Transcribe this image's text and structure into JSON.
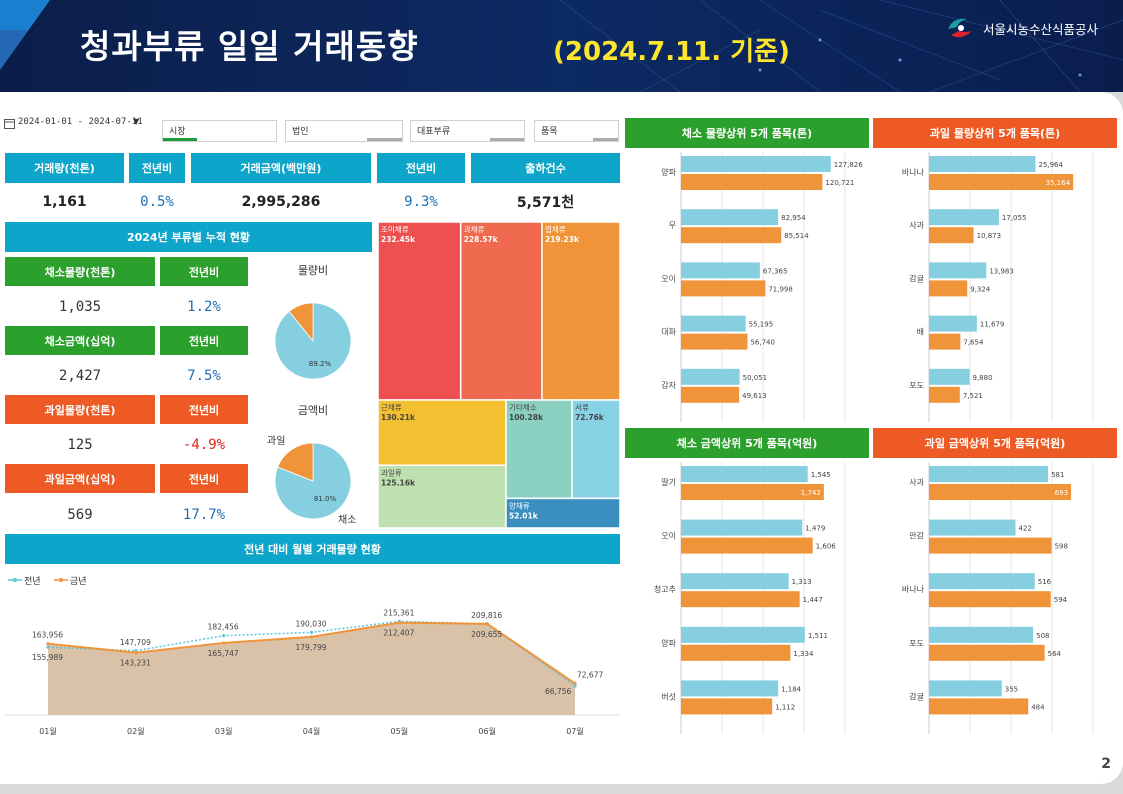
{
  "header": {
    "title": "청과부류 일일 거래동향",
    "date": "(2024.7.11. 기준)",
    "org": "서울시농수산식품공사"
  },
  "page_number": "2",
  "filters": {
    "date_range": "2024-01-01 - 2024-07-11",
    "items": [
      "시장",
      "법인",
      "대표부류",
      "품목"
    ]
  },
  "kpi": {
    "headers": [
      "거래량(천톤)",
      "전년비",
      "거래금액(백만원)",
      "전년비",
      "출하건수"
    ],
    "values": [
      "1,161",
      "0.5%",
      "2,995,286",
      "9.3%",
      "5,571천"
    ]
  },
  "cumulative": {
    "title": "2024년 부류별 누적 현황",
    "rows": [
      {
        "label": "채소물량(천톤)",
        "yoy_label": "전년비",
        "value": "1,035",
        "yoy": "1.2%"
      },
      {
        "label": "채소금액(십억)",
        "yoy_label": "전년비",
        "value": "2,427",
        "yoy": "7.5%"
      },
      {
        "label": "과일물량(천톤)",
        "yoy_label": "전년비",
        "value": "125",
        "yoy": "-4.9%"
      },
      {
        "label": "과일금액(십억)",
        "yoy_label": "전년비",
        "value": "569",
        "yoy": "17.7%"
      }
    ],
    "pie_volume_title": "물량비",
    "pie_amount_title": "금액비",
    "pie_label_fruit": "과일",
    "pie_label_veg": "채소"
  },
  "monthly": {
    "title": "전년 대비 월별 거래물량 현황",
    "legend_prev": "전년",
    "legend_curr": "금년"
  },
  "panels": {
    "veg_volume_title": "채소 물량상위 5개 품목(톤)",
    "fruit_volume_title": "과일 물량상위 5개 품목(톤)",
    "veg_amount_title": "채소 금액상위 5개 품목(억원)",
    "fruit_amount_title": "과일 금액상위 5개 품목(억원)"
  },
  "colors": {
    "teal": "#0da5c9",
    "green": "#2ca02c",
    "orange": "#ee5a24",
    "bar_prev": "#86cfe0",
    "bar_curr": "#f0943a"
  },
  "chart_data": [
    {
      "type": "pie",
      "title": "물량비",
      "labels": [
        "채소",
        "과일"
      ],
      "values": [
        89.2,
        10.8
      ],
      "data_labels": [
        "89.2%",
        ""
      ]
    },
    {
      "type": "pie",
      "title": "금액비",
      "labels": [
        "채소",
        "과일"
      ],
      "values": [
        81.0,
        19.0
      ],
      "data_labels": [
        "81.0%",
        ""
      ]
    },
    {
      "type": "heatmap",
      "subtype": "treemap",
      "items": [
        {
          "name": "조미채류",
          "value": 232.45,
          "label": "232.45k",
          "color": "#ee5050"
        },
        {
          "name": "과채류",
          "value": 228.57,
          "label": "228.57k",
          "color": "#ef6a4e"
        },
        {
          "name": "엽채류",
          "value": 219.23,
          "label": "219.23k",
          "color": "#f0943a"
        },
        {
          "name": "근채류",
          "value": 130.21,
          "label": "130.21k",
          "color": "#f2c030"
        },
        {
          "name": "과일류",
          "value": 125.16,
          "label": "125.16k",
          "color": "#bfe0b0"
        },
        {
          "name": "기타채소",
          "value": 100.28,
          "label": "100.28k",
          "color": "#8cd0c2"
        },
        {
          "name": "서류",
          "value": 72.76,
          "label": "72.76k",
          "color": "#88d2e6"
        },
        {
          "name": "양채류",
          "value": 52.01,
          "label": "52.01k",
          "color": "#3b8fc0"
        }
      ]
    },
    {
      "type": "area",
      "title": "전년 대비 월별 거래물량 현황",
      "categories": [
        "01월",
        "02월",
        "03월",
        "04월",
        "05월",
        "06월",
        "07월"
      ],
      "series": [
        {
          "name": "전년",
          "values": [
            155989,
            147709,
            182456,
            190030,
            215361,
            209816,
            66756
          ]
        },
        {
          "name": "금년",
          "values": [
            163956,
            143231,
            165747,
            179799,
            212407,
            209655,
            72677
          ]
        }
      ],
      "ylim": [
        0,
        230000
      ]
    },
    {
      "type": "bar",
      "title": "채소 물량상위 5개 품목(톤)",
      "categories": [
        "양파",
        "무",
        "오이",
        "대파",
        "감자"
      ],
      "series": [
        {
          "name": "전년",
          "values": [
            127826,
            82954,
            67365,
            55195,
            50051
          ]
        },
        {
          "name": "금년",
          "values": [
            120721,
            85514,
            71998,
            56740,
            49613
          ]
        }
      ],
      "xlim": [
        0,
        140000
      ]
    },
    {
      "type": "bar",
      "title": "과일 물량상위 5개 품목(톤)",
      "categories": [
        "바나나",
        "사과",
        "감귤",
        "배",
        "포도"
      ],
      "series": [
        {
          "name": "전년",
          "values": [
            25964,
            17055,
            13983,
            11679,
            9880
          ]
        },
        {
          "name": "금년",
          "values": [
            35164,
            10873,
            9324,
            7654,
            7521
          ]
        }
      ],
      "xlim": [
        0,
        40000
      ]
    },
    {
      "type": "bar",
      "title": "채소 금액상위 5개 품목(억원)",
      "categories": [
        "딸기",
        "오이",
        "청고추",
        "양파",
        "버섯"
      ],
      "series": [
        {
          "name": "전년",
          "values": [
            1545,
            1479,
            1313,
            1511,
            1184
          ]
        },
        {
          "name": "금년",
          "values": [
            1742,
            1606,
            1447,
            1334,
            1112
          ]
        }
      ],
      "xlim": [
        0,
        2000
      ]
    },
    {
      "type": "bar",
      "title": "과일 금액상위 5개 품목(억원)",
      "categories": [
        "사과",
        "만감",
        "바나나",
        "포도",
        "감귤"
      ],
      "series": [
        {
          "name": "전년",
          "values": [
            581,
            422,
            516,
            508,
            355
          ]
        },
        {
          "name": "금년",
          "values": [
            693,
            598,
            594,
            564,
            484
          ]
        }
      ],
      "xlim": [
        0,
        800
      ]
    }
  ]
}
